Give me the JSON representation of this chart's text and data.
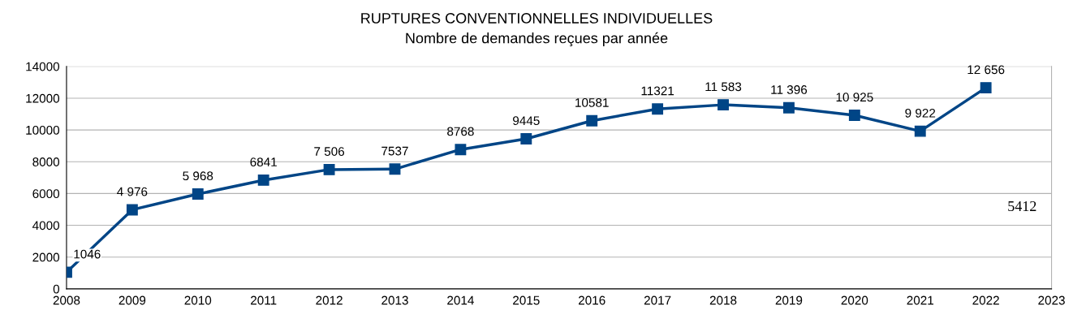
{
  "chart_data": {
    "type": "line",
    "title": "RUPTURES CONVENTIONNELLES INDIVIDUELLES",
    "subtitle": "Nombre de demandes reçues par année",
    "x": [
      2008,
      2009,
      2010,
      2011,
      2012,
      2013,
      2014,
      2015,
      2016,
      2017,
      2018,
      2019,
      2020,
      2021,
      2022
    ],
    "series": [
      {
        "color": "#004586",
        "values": [
          1046,
          4976,
          5968,
          6841,
          7506,
          7537,
          8768,
          9445,
          10581,
          11321,
          11583,
          11396,
          10925,
          9922,
          12656
        ],
        "value_labels": [
          "1046",
          "4 976",
          "5 968",
          "6841",
          "7 506",
          "7537",
          "8768",
          "9445",
          "10581",
          "11321",
          "11 583",
          "11 396",
          "10 925",
          "9 922",
          "12 656"
        ]
      }
    ],
    "xlim": [
      2008,
      2023
    ],
    "xticks": [
      2008,
      2009,
      2010,
      2011,
      2012,
      2013,
      2014,
      2015,
      2016,
      2017,
      2018,
      2019,
      2020,
      2021,
      2022,
      2023
    ],
    "ylim": [
      0,
      14000
    ],
    "yticks": [
      0,
      2000,
      4000,
      6000,
      8000,
      10000,
      12000,
      14000
    ],
    "grid": "y",
    "marker": "square",
    "line_style": "solid",
    "annotations": [
      "5412"
    ]
  }
}
